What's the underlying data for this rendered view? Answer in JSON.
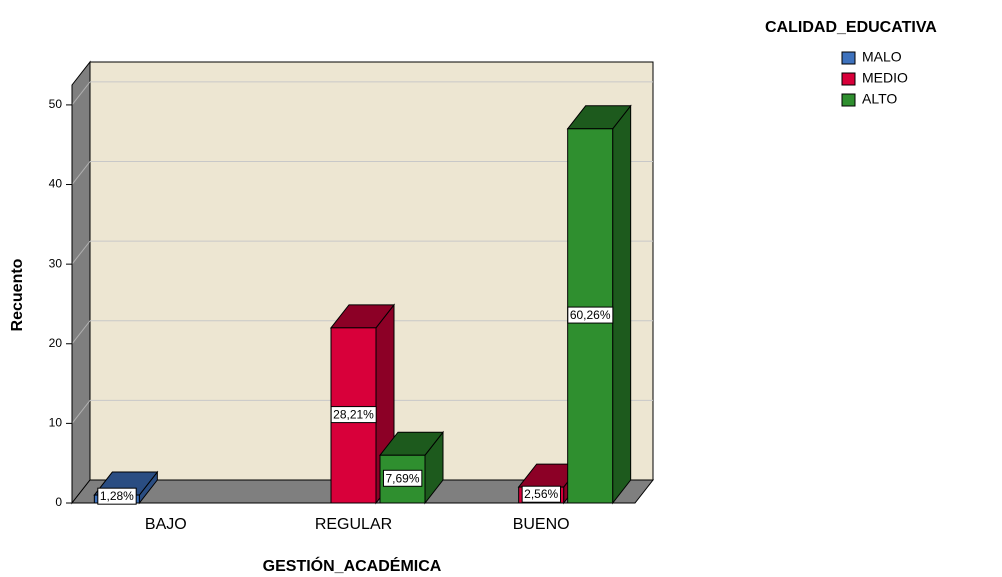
{
  "chart_data": {
    "type": "bar3d",
    "x_label": "GESTIÓN_ACADÉMICA",
    "y_label": "Recuento",
    "legend_title": "CALIDAD_EDUCATIVA",
    "legend": "top-right",
    "categories": [
      "BAJO",
      "REGULAR",
      "BUENO"
    ],
    "series": [
      {
        "name": "MALO",
        "color": "#3e72bd",
        "dark": "#2a4d82",
        "values": [
          1,
          null,
          null
        ],
        "percent_labels": [
          "1,28%",
          null,
          null
        ]
      },
      {
        "name": "MEDIO",
        "color": "#d8003a",
        "dark": "#8c0026",
        "values": [
          null,
          22,
          2
        ],
        "percent_labels": [
          null,
          "28,21%",
          "2,56%"
        ]
      },
      {
        "name": "ALTO",
        "color": "#2f8f2f",
        "dark": "#1d5a1d",
        "values": [
          null,
          6,
          47
        ],
        "percent_labels": [
          null,
          "7,69%",
          "60,26%"
        ]
      }
    ],
    "ylim": [
      0,
      52.5
    ],
    "yticks": [
      0,
      10,
      20,
      30,
      40,
      50
    ],
    "grid": true
  }
}
